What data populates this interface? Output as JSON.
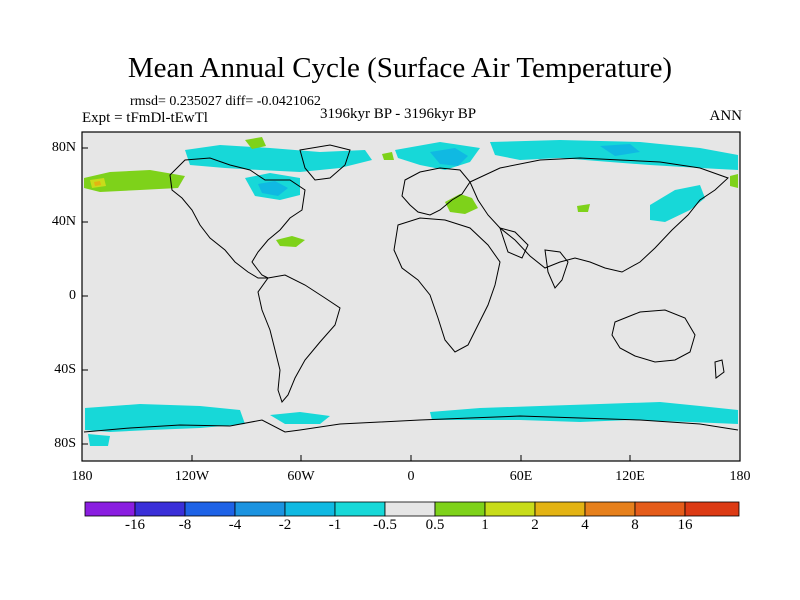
{
  "title": "Mean Annual Cycle (Surface Air Temperature)",
  "stats": "rmsd= 0.235027 diff= -0.0421062",
  "experiment": "Expt = tFmDl-tEwTl",
  "period": "3196kyr BP - 3196kyr BP",
  "season": "ANN",
  "y_axis_labels": [
    "80N",
    "40N",
    "0",
    "40S",
    "80S"
  ],
  "x_axis_labels": [
    "180",
    "120W",
    "60W",
    "0",
    "60E",
    "120E",
    "180"
  ],
  "colorbar": {
    "labels": [
      "-16",
      "-8",
      "-4",
      "-2",
      "-1",
      "-0.5",
      "0.5",
      "1",
      "2",
      "4",
      "8",
      "16"
    ],
    "colors": [
      "#8a1ee0",
      "#3a2fd8",
      "#1e62e6",
      "#1b93e0",
      "#10b9e2",
      "#17d8d8",
      "#e6e6e6",
      "#7ed21a",
      "#c8dc1a",
      "#e3b313",
      "#e6801c",
      "#e55c1a",
      "#dc3a14"
    ]
  }
}
